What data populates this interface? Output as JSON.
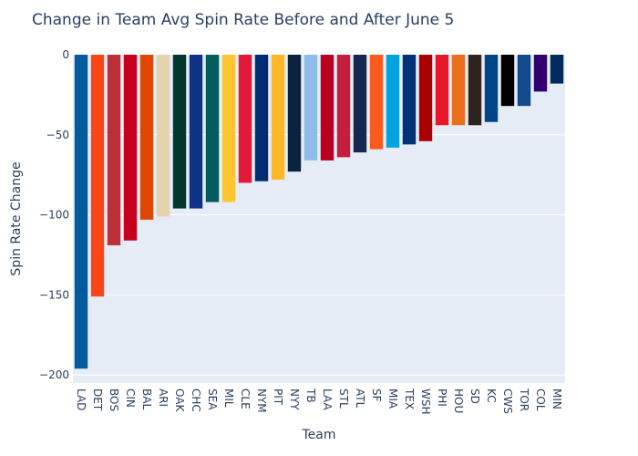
{
  "chart_data": {
    "type": "bar",
    "title": "Change in Team Avg Spin Rate Before and After June 5",
    "xlabel": "Team",
    "ylabel": "Spin Rate Change",
    "ylim": [
      -205,
      0
    ],
    "yticks": [
      0,
      -50,
      -100,
      -150,
      -200
    ],
    "grid": true,
    "categories": [
      "LAD",
      "DET",
      "BOS",
      "CIN",
      "BAL",
      "ARI",
      "OAK",
      "CHC",
      "SEA",
      "MIL",
      "CLE",
      "NYM",
      "PIT",
      "NYY",
      "TB",
      "LAA",
      "STL",
      "ATL",
      "SF",
      "MIA",
      "TEX",
      "WSH",
      "PHI",
      "HOU",
      "SD",
      "KC",
      "CWS",
      "TOR",
      "COL",
      "MIN"
    ],
    "values": [
      -196,
      -151,
      -119,
      -116,
      -103,
      -101,
      -96,
      -96,
      -92,
      -92,
      -80,
      -79,
      -78,
      -73,
      -66,
      -66,
      -64,
      -61,
      -59,
      -58,
      -56,
      -54,
      -44,
      -44,
      -44,
      -42,
      -32,
      -32,
      -23,
      -18
    ],
    "colors": [
      "#005A9C",
      "#FA4616",
      "#BD3039",
      "#C6011F",
      "#DF4601",
      "#E3D4AD",
      "#003831",
      "#0E3386",
      "#005C5C",
      "#FFC52F",
      "#E31937",
      "#002D72",
      "#FDB827",
      "#0C2340",
      "#8FBCE6",
      "#BA0021",
      "#C41E3A",
      "#13274F",
      "#FD5A1E",
      "#00A3E0",
      "#003278",
      "#AB0003",
      "#E81828",
      "#EB6E1F",
      "#2F241D",
      "#004687",
      "#000000",
      "#134A8E",
      "#33006F",
      "#002B5C"
    ]
  }
}
